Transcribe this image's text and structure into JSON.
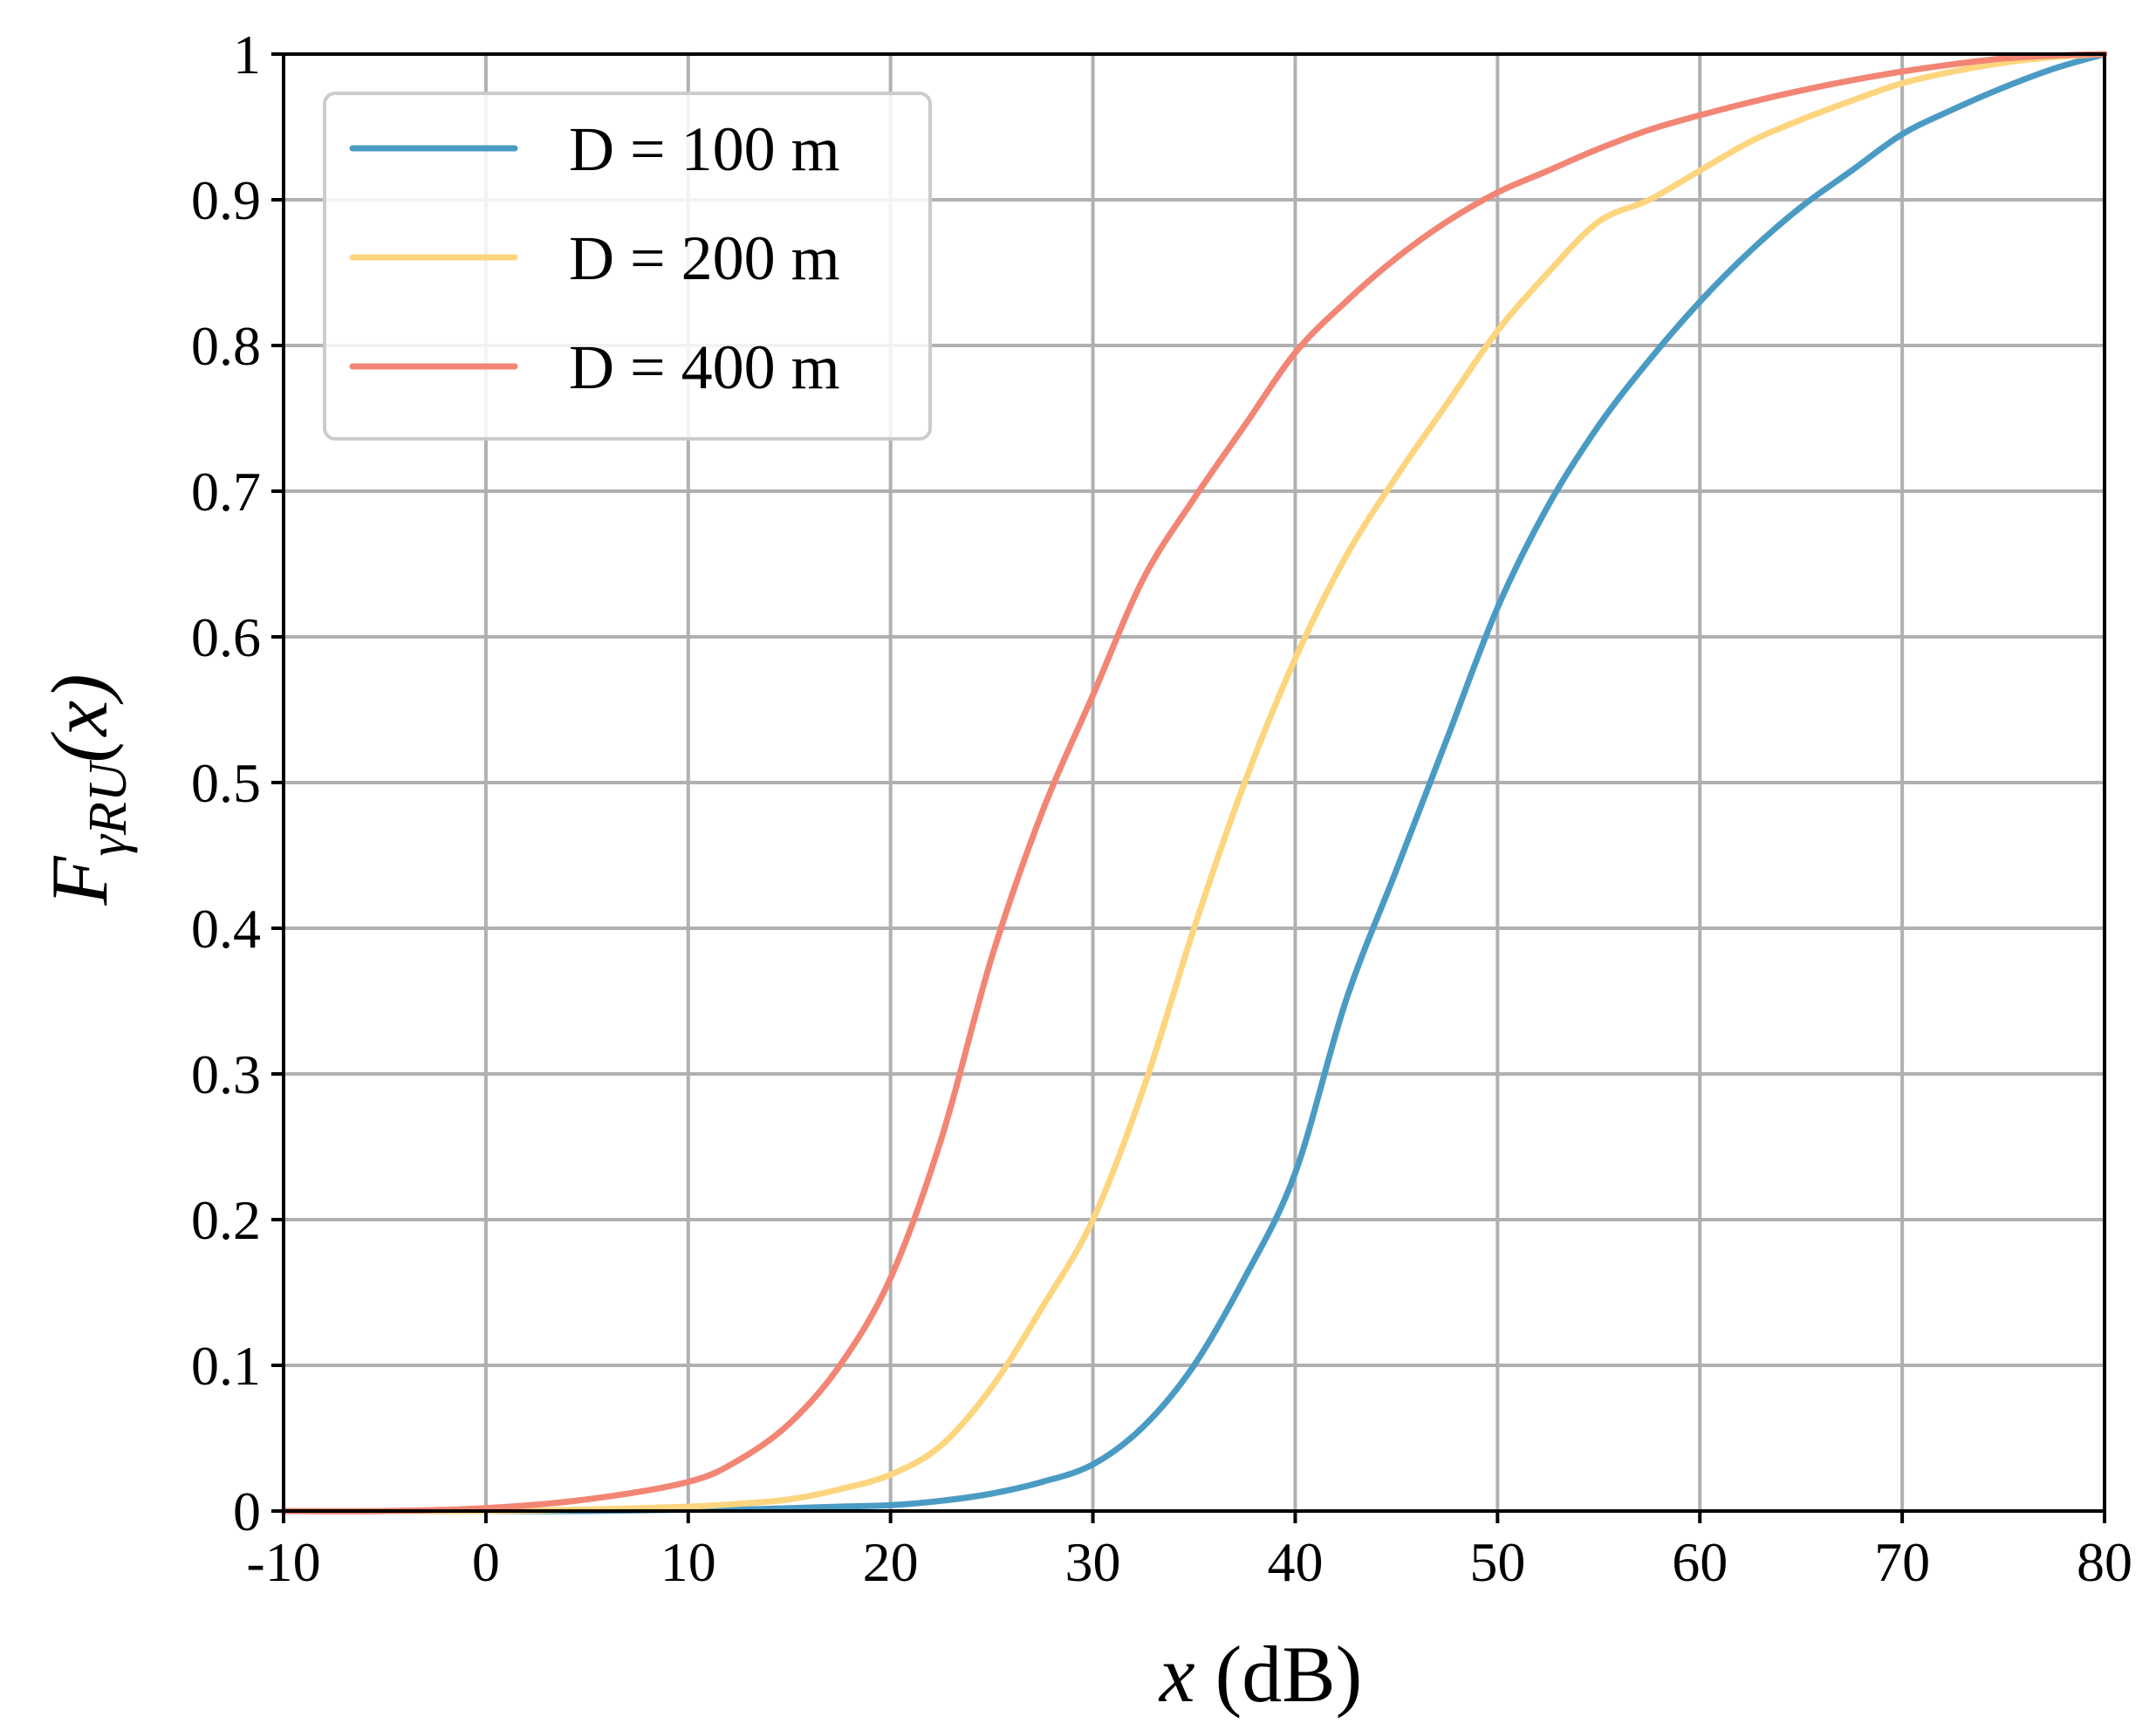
{
  "chart_data": {
    "type": "line",
    "xlabel": "x (dB)",
    "xlabel_parts": {
      "var": "x",
      "unit": " (dB)"
    },
    "ylabel": "F_γRU(x)",
    "ylabel_parts": {
      "main": "F",
      "sub": "γRU",
      "arg": "(x)"
    },
    "xlim": [
      -10,
      80
    ],
    "ylim": [
      0,
      1
    ],
    "xticks": [
      "-10",
      "0",
      "10",
      "20",
      "30",
      "40",
      "50",
      "60",
      "70",
      "80"
    ],
    "yticks": [
      "0",
      "0.1",
      "0.2",
      "0.3",
      "0.4",
      "0.5",
      "0.6",
      "0.7",
      "0.8",
      "0.9",
      "1"
    ],
    "grid": true,
    "legend_position": "top-left",
    "x": [
      -10,
      -5,
      0,
      5,
      10,
      12.5,
      15,
      17.5,
      20,
      22.5,
      25,
      27.5,
      30,
      32.5,
      35,
      37.5,
      40,
      42.5,
      45,
      47.5,
      50,
      52.5,
      55,
      57.5,
      60,
      62.5,
      65,
      67.5,
      70,
      72.5,
      75,
      77.5,
      80
    ],
    "series": [
      {
        "name": "D = 100 m",
        "color": "#4a9bc4",
        "values": [
          0,
          0,
          0,
          0,
          0.001,
          0.001,
          0.002,
          0.003,
          0.004,
          0.007,
          0.012,
          0.02,
          0.032,
          0.058,
          0.1,
          0.16,
          0.232,
          0.35,
          0.44,
          0.53,
          0.62,
          0.69,
          0.745,
          0.79,
          0.83,
          0.865,
          0.895,
          0.92,
          0.945,
          0.962,
          0.977,
          0.99,
          1.0
        ]
      },
      {
        "name": "D = 200 m",
        "color": "#fcd57e",
        "values": [
          0,
          0,
          0,
          0.001,
          0.003,
          0.005,
          0.008,
          0.015,
          0.025,
          0.045,
          0.085,
          0.14,
          0.2,
          0.29,
          0.4,
          0.5,
          0.585,
          0.655,
          0.71,
          0.76,
          0.81,
          0.85,
          0.885,
          0.9,
          0.92,
          0.94,
          0.955,
          0.968,
          0.98,
          0.988,
          0.994,
          0.998,
          1.0
        ]
      },
      {
        "name": "D = 400 m",
        "color": "#f28574",
        "values": [
          0,
          0,
          0.002,
          0.008,
          0.02,
          0.035,
          0.06,
          0.1,
          0.16,
          0.255,
          0.38,
          0.48,
          0.56,
          0.64,
          0.695,
          0.745,
          0.795,
          0.83,
          0.86,
          0.885,
          0.905,
          0.92,
          0.935,
          0.948,
          0.958,
          0.967,
          0.975,
          0.982,
          0.988,
          0.993,
          0.997,
          0.999,
          1.0
        ]
      }
    ]
  }
}
